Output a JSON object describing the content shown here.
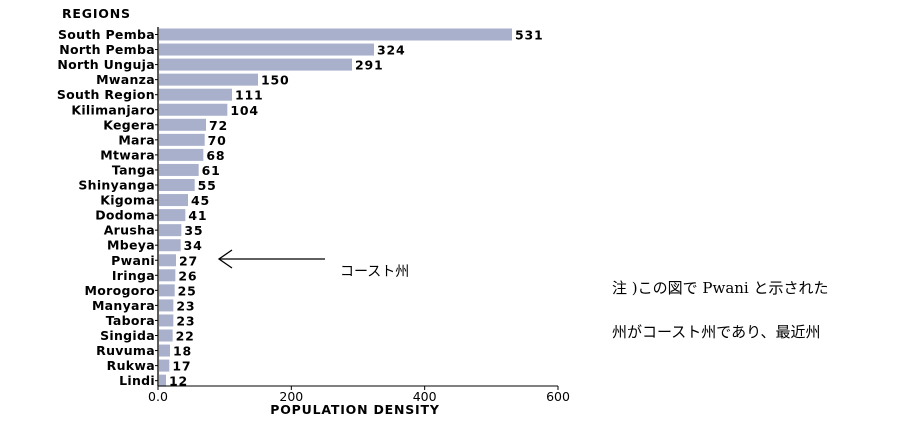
{
  "chart_data": {
    "type": "bar",
    "orientation": "horizontal",
    "title": "REGIONS",
    "xlabel": "POPULATION DENSITY",
    "xlim": [
      0,
      600
    ],
    "xticks": [
      "0.0",
      "200",
      "400",
      "600"
    ],
    "bar_color": "#a9b0cc",
    "categories": [
      "South Pemba",
      "North Pemba",
      "North Unguja",
      "Mwanza",
      "South Region",
      "Kilimanjaro",
      "Kegera",
      "Mara",
      "Mtwara",
      "Tanga",
      "Shinyanga",
      "Kigoma",
      "Dodoma",
      "Arusha",
      "Mbeya",
      "Pwani",
      "Iringa",
      "Morogoro",
      "Manyara",
      "Tabora",
      "Singida",
      "Ruvuma",
      "Rukwa",
      "Lindi"
    ],
    "values": [
      531,
      324,
      291,
      150,
      111,
      104,
      72,
      70,
      68,
      61,
      55,
      45,
      41,
      35,
      34,
      27,
      26,
      25,
      23,
      23,
      22,
      18,
      17,
      12
    ],
    "annotation": {
      "text": "コースト州",
      "target": "Pwani"
    }
  },
  "notes": [
    "注 )この図で Pwani と示された",
    "州がコースト州であり、最近州"
  ]
}
